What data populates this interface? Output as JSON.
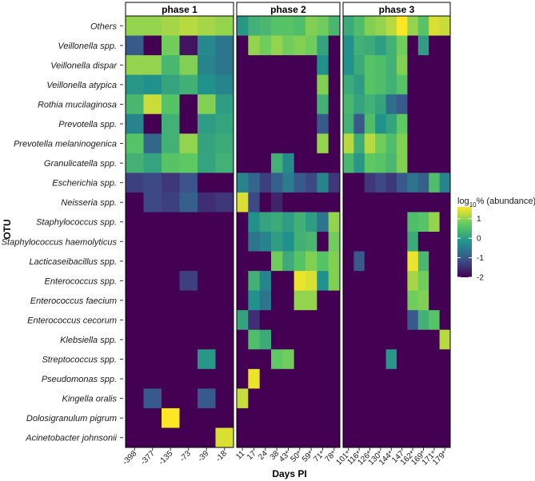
{
  "chart_data": {
    "type": "heatmap",
    "xlabel": "Days PI",
    "ylabel": "OTU",
    "legend": {
      "title_prefix": "log",
      "title_sub": "10",
      "title_suffix": "% (abundance)",
      "ticks": [
        1,
        0,
        -1,
        -2
      ],
      "range": [
        -2,
        1.6
      ],
      "placement": "right"
    },
    "otus": [
      "Others",
      "Veillonella spp.",
      "Veillonella dispar",
      "Veillonella atypica",
      "Rothia mucilaginosa",
      "Prevotella spp.",
      "Prevotella melaninogenica",
      "Granulicatella spp.",
      "Escherichia spp.",
      "Neisseria spp.",
      "Staphylococcus spp.",
      "Staphylococcus haemolyticus",
      "Lacticaseibacillus spp.",
      "Enterococcus spp.",
      "Enterococcus faecium",
      "Enterococcus cecorum",
      "Klebsiella spp.",
      "Streptococcus spp.",
      "Pseudomonas spp.",
      "Kingella oralis",
      "Dolosigranulum pigrum",
      "Acinetobacter johnsonii"
    ],
    "phases": [
      {
        "name": "phase 1",
        "days": [
          "-398",
          "-377",
          "-135",
          "-73",
          "-39",
          "-18"
        ],
        "values": [
          [
            1.0,
            1.0,
            1.1,
            1.2,
            1.1,
            1.0
          ],
          [
            -1.0,
            -2.0,
            0.8,
            -1.8,
            -0.3,
            -0.6
          ],
          [
            1.0,
            1.0,
            0.4,
            0.9,
            -0.4,
            -0.6
          ],
          [
            -0.1,
            -0.2,
            0.1,
            0.3,
            -0.2,
            -0.4
          ],
          [
            0.4,
            1.3,
            0.6,
            -2.0,
            0.9,
            0.0
          ],
          [
            -0.4,
            -2.0,
            0.3,
            -2.0,
            0.0,
            0.1
          ],
          [
            0.6,
            -0.8,
            0.3,
            1.0,
            0.1,
            0.2
          ],
          [
            0.3,
            0.1,
            0.6,
            0.7,
            0.1,
            0.3
          ],
          [
            -1.3,
            -1.2,
            -1.4,
            -1.1,
            -2.0,
            -2.0
          ],
          [
            -2.0,
            -1.2,
            -1.3,
            -0.9,
            -1.5,
            -1.4
          ],
          [
            -2.0,
            -2.0,
            -2.0,
            -2.0,
            -2.0,
            -2.0
          ],
          [
            -2.0,
            -2.0,
            -2.0,
            -2.0,
            -2.0,
            -2.0
          ],
          [
            -2.0,
            -2.0,
            -2.0,
            -2.0,
            -2.0,
            -2.0
          ],
          [
            -2.0,
            -2.0,
            -2.0,
            -1.3,
            -2.0,
            -2.0
          ],
          [
            -2.0,
            -2.0,
            -2.0,
            -2.0,
            -2.0,
            -2.0
          ],
          [
            -2.0,
            -2.0,
            -2.0,
            -2.0,
            -2.0,
            -2.0
          ],
          [
            -2.0,
            -2.0,
            -2.0,
            -2.0,
            -2.0,
            -2.0
          ],
          [
            -2.0,
            -2.0,
            -2.0,
            -2.0,
            -0.1,
            -2.0
          ],
          [
            -2.0,
            -2.0,
            -2.0,
            -2.0,
            -2.0,
            -2.0
          ],
          [
            -2.0,
            -1.0,
            -2.0,
            -2.0,
            -1.0,
            -2.0
          ],
          [
            -2.0,
            -2.0,
            1.6,
            -2.0,
            -2.0,
            -2.0
          ],
          [
            -2.0,
            -2.0,
            -2.0,
            -2.0,
            -2.0,
            1.4
          ]
        ]
      },
      {
        "name": "phase 2",
        "days": [
          "11",
          "17",
          "24",
          "38",
          "43*",
          "50*",
          "59*",
          "71*",
          "78*"
        ],
        "values": [
          [
            -0.1,
            0.3,
            0.4,
            0.6,
            0.6,
            0.5,
            0.9,
            0.8,
            0.4
          ],
          [
            -2.0,
            1.0,
            0.8,
            1.0,
            0.8,
            0.9,
            0.8,
            0.1,
            -2.0
          ],
          [
            -2.0,
            -2.0,
            -2.0,
            -2.0,
            -2.0,
            -2.0,
            -2.0,
            -0.2,
            -2.0
          ],
          [
            -2.0,
            -2.0,
            -2.0,
            -2.0,
            -2.0,
            -2.0,
            -2.0,
            0.9,
            -2.0
          ],
          [
            -2.0,
            -2.0,
            -2.0,
            -2.0,
            -2.0,
            -2.0,
            -2.0,
            0.3,
            -2.0
          ],
          [
            -2.0,
            -2.0,
            -2.0,
            -2.0,
            -2.0,
            -2.0,
            -2.0,
            -1.0,
            -2.0
          ],
          [
            -2.0,
            -2.0,
            -2.0,
            -2.0,
            -2.0,
            -2.0,
            -2.0,
            1.0,
            -2.0
          ],
          [
            -2.0,
            -2.0,
            -2.0,
            0.3,
            -0.3,
            -2.0,
            -2.0,
            -2.0,
            -2.0
          ],
          [
            -0.4,
            -0.8,
            -1.3,
            -0.9,
            -0.5,
            -1.0,
            -1.2,
            -0.4,
            -1.4
          ],
          [
            1.4,
            -1.2,
            -2.0,
            -1.6,
            -2.0,
            -2.0,
            -2.0,
            -2.0,
            -2.0
          ],
          [
            -2.0,
            -0.2,
            0.1,
            0.2,
            0.0,
            0.3,
            0.0,
            -0.6,
            1.0
          ],
          [
            -2.0,
            -0.6,
            -0.4,
            0.0,
            -0.2,
            0.3,
            0.4,
            -2.0,
            0.8
          ],
          [
            -2.0,
            -2.0,
            -2.0,
            0.8,
            0.2,
            0.6,
            0.9,
            0.6,
            0.9
          ],
          [
            -2.0,
            0.3,
            -0.4,
            -2.0,
            -2.0,
            1.5,
            1.4,
            -0.2,
            0.9
          ],
          [
            -2.0,
            -0.2,
            -0.6,
            -2.0,
            -2.0,
            1.0,
            1.0,
            -2.0,
            -2.0
          ],
          [
            0.1,
            -1.5,
            -2.0,
            -2.0,
            -2.0,
            -2.0,
            -2.0,
            -2.0,
            -2.0
          ],
          [
            -2.0,
            0.5,
            0.2,
            -2.0,
            -2.0,
            -2.0,
            -2.0,
            -2.0,
            -2.0
          ],
          [
            -2.0,
            -2.0,
            -2.0,
            0.7,
            0.8,
            -2.0,
            -2.0,
            -2.0,
            -2.0
          ],
          [
            -2.0,
            1.5,
            -2.0,
            -2.0,
            -2.0,
            -2.0,
            -2.0,
            -2.0,
            -2.0
          ],
          [
            1.3,
            -2.0,
            -2.0,
            -2.0,
            -2.0,
            -2.0,
            -2.0,
            -2.0,
            -2.0
          ],
          [
            -2.0,
            -2.0,
            -2.0,
            -2.0,
            -2.0,
            -2.0,
            -2.0,
            -2.0,
            -2.0
          ],
          [
            -2.0,
            -2.0,
            -2.0,
            -2.0,
            -2.0,
            -2.0,
            -2.0,
            -2.0,
            -2.0
          ]
        ]
      },
      {
        "name": "phase 3",
        "days": [
          "101*",
          "116*",
          "126*",
          "130*",
          "144*",
          "147",
          "162*",
          "169*",
          "171*",
          "179*"
        ],
        "values": [
          [
            0.2,
            0.5,
            0.9,
            1.0,
            1.2,
            1.6,
            1.0,
            0.6,
            1.4,
            1.3
          ],
          [
            -0.2,
            0.3,
            0.2,
            0.0,
            0.3,
            0.8,
            -2.0,
            0.0,
            -2.0,
            -2.0
          ],
          [
            -0.2,
            0.2,
            0.6,
            0.5,
            0.3,
            0.9,
            -2.0,
            -2.0,
            -2.0,
            -2.0
          ],
          [
            0.2,
            0.0,
            0.6,
            0.5,
            0.3,
            0.6,
            -2.0,
            -2.0,
            -2.0,
            -2.0
          ],
          [
            0.4,
            0.1,
            0.3,
            0.1,
            -0.7,
            -1.0,
            -2.0,
            -2.0,
            -2.0,
            -2.0
          ],
          [
            0.3,
            -1.0,
            0.5,
            -0.2,
            0.1,
            0.7,
            -2.0,
            -2.0,
            -2.0,
            -2.0
          ],
          [
            1.2,
            0.2,
            1.2,
            0.8,
            0.5,
            0.9,
            -2.0,
            -2.0,
            -2.0,
            -2.0
          ],
          [
            0.4,
            -0.1,
            0.7,
            0.6,
            0.4,
            0.9,
            -2.0,
            -2.0,
            -2.0,
            -2.0
          ],
          [
            -2.0,
            -2.0,
            -1.4,
            -1.2,
            -1.4,
            -1.0,
            -0.6,
            -0.9,
            0.5,
            -0.4
          ],
          [
            -2.0,
            -2.0,
            -2.0,
            -2.0,
            -2.0,
            -2.0,
            -2.0,
            -2.0,
            -2.0,
            -2.0
          ],
          [
            -2.0,
            -2.0,
            -2.0,
            -2.0,
            -2.0,
            -2.0,
            0.5,
            0.6,
            1.0,
            -2.0
          ],
          [
            -2.0,
            -2.0,
            -2.0,
            -2.0,
            -2.0,
            -2.0,
            0.2,
            -2.0,
            -2.0,
            -2.0
          ],
          [
            -2.0,
            -1.0,
            -2.0,
            -2.0,
            -2.0,
            -2.0,
            1.5,
            0.4,
            -2.0,
            -2.0
          ],
          [
            -2.0,
            -2.0,
            -2.0,
            -2.0,
            -2.0,
            -2.0,
            1.1,
            0.8,
            -2.0,
            -2.0
          ],
          [
            -2.0,
            -2.0,
            -2.0,
            -2.0,
            -2.0,
            -2.0,
            0.8,
            0.9,
            -2.0,
            -2.0
          ],
          [
            -2.0,
            -2.0,
            -2.0,
            -2.0,
            -2.0,
            -2.0,
            -1.0,
            0.3,
            0.6,
            -2.0
          ],
          [
            -2.0,
            -2.0,
            -2.0,
            -2.0,
            -2.0,
            -2.0,
            -2.0,
            -2.0,
            -2.0,
            1.2
          ],
          [
            -2.0,
            -2.0,
            -2.0,
            -2.0,
            -0.1,
            -2.0,
            -2.0,
            -2.0,
            -2.0,
            -2.0
          ],
          [
            -2.0,
            -2.0,
            -2.0,
            -2.0,
            -2.0,
            -2.0,
            -2.0,
            -2.0,
            -2.0,
            -2.0
          ],
          [
            -2.0,
            -2.0,
            -2.0,
            -2.0,
            -2.0,
            -2.0,
            -2.0,
            -2.0,
            -2.0,
            -2.0
          ],
          [
            -2.0,
            -2.0,
            -2.0,
            -2.0,
            -2.0,
            -2.0,
            -2.0,
            -2.0,
            -2.0,
            -2.0
          ],
          [
            -2.0,
            -2.0,
            -2.0,
            -2.0,
            -2.0,
            -2.0,
            -2.0,
            -2.0,
            -2.0,
            -2.0
          ]
        ]
      }
    ]
  }
}
